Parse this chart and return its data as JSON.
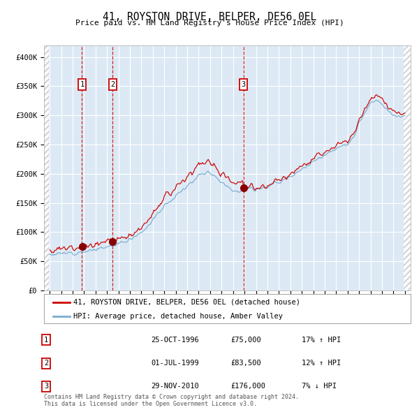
{
  "title": "41, ROYSTON DRIVE, BELPER, DE56 0EL",
  "subtitle": "Price paid vs. HM Land Registry's House Price Index (HPI)",
  "background_color": "#ffffff",
  "plot_bg_color": "#dce9f5",
  "grid_color": "#ffffff",
  "sale1_date_num": 1996.82,
  "sale2_date_num": 1999.5,
  "sale3_date_num": 2010.91,
  "sale1_price": 75000,
  "sale2_price": 83500,
  "sale3_price": 176000,
  "legend_line1": "41, ROYSTON DRIVE, BELPER, DE56 0EL (detached house)",
  "legend_line2": "HPI: Average price, detached house, Amber Valley",
  "table_rows": [
    [
      "1",
      "25-OCT-1996",
      "£75,000",
      "17% ↑ HPI"
    ],
    [
      "2",
      "01-JUL-1999",
      "£83,500",
      "12% ↑ HPI"
    ],
    [
      "3",
      "29-NOV-2010",
      "£176,000",
      "7% ↓ HPI"
    ]
  ],
  "footer": "Contains HM Land Registry data © Crown copyright and database right 2024.\nThis data is licensed under the Open Government Licence v3.0.",
  "red_line_color": "#cc0000",
  "blue_line_color": "#7aadcf",
  "dot_color": "#880000",
  "vline_color": "#cc0000",
  "label_box_color": "#ffffff",
  "label_box_edge": "#cc0000",
  "ylim": [
    0,
    420000
  ],
  "xlim_start": 1993.5,
  "xlim_end": 2025.5,
  "hpi_anchors_x": [
    1994.0,
    1995.0,
    1996.0,
    1997.0,
    1998.0,
    1999.0,
    2000.0,
    2001.0,
    2002.0,
    2003.0,
    2004.0,
    2005.0,
    2006.0,
    2007.0,
    2007.8,
    2008.5,
    2009.5,
    2010.0,
    2010.5,
    2011.0,
    2011.5,
    2012.0,
    2013.0,
    2014.0,
    2015.0,
    2016.0,
    2017.0,
    2018.0,
    2019.0,
    2020.0,
    2020.5,
    2021.0,
    2021.5,
    2022.0,
    2022.5,
    2023.0,
    2023.5,
    2024.0,
    2024.5,
    2025.0
  ],
  "hpi_anchors_y": [
    62000,
    63000,
    65000,
    67000,
    70000,
    74000,
    80000,
    88000,
    100000,
    120000,
    145000,
    162000,
    178000,
    198000,
    204000,
    195000,
    178000,
    173000,
    170000,
    172000,
    174000,
    174000,
    178000,
    186000,
    196000,
    208000,
    220000,
    233000,
    242000,
    250000,
    262000,
    285000,
    305000,
    320000,
    325000,
    318000,
    308000,
    300000,
    298000,
    300000
  ]
}
